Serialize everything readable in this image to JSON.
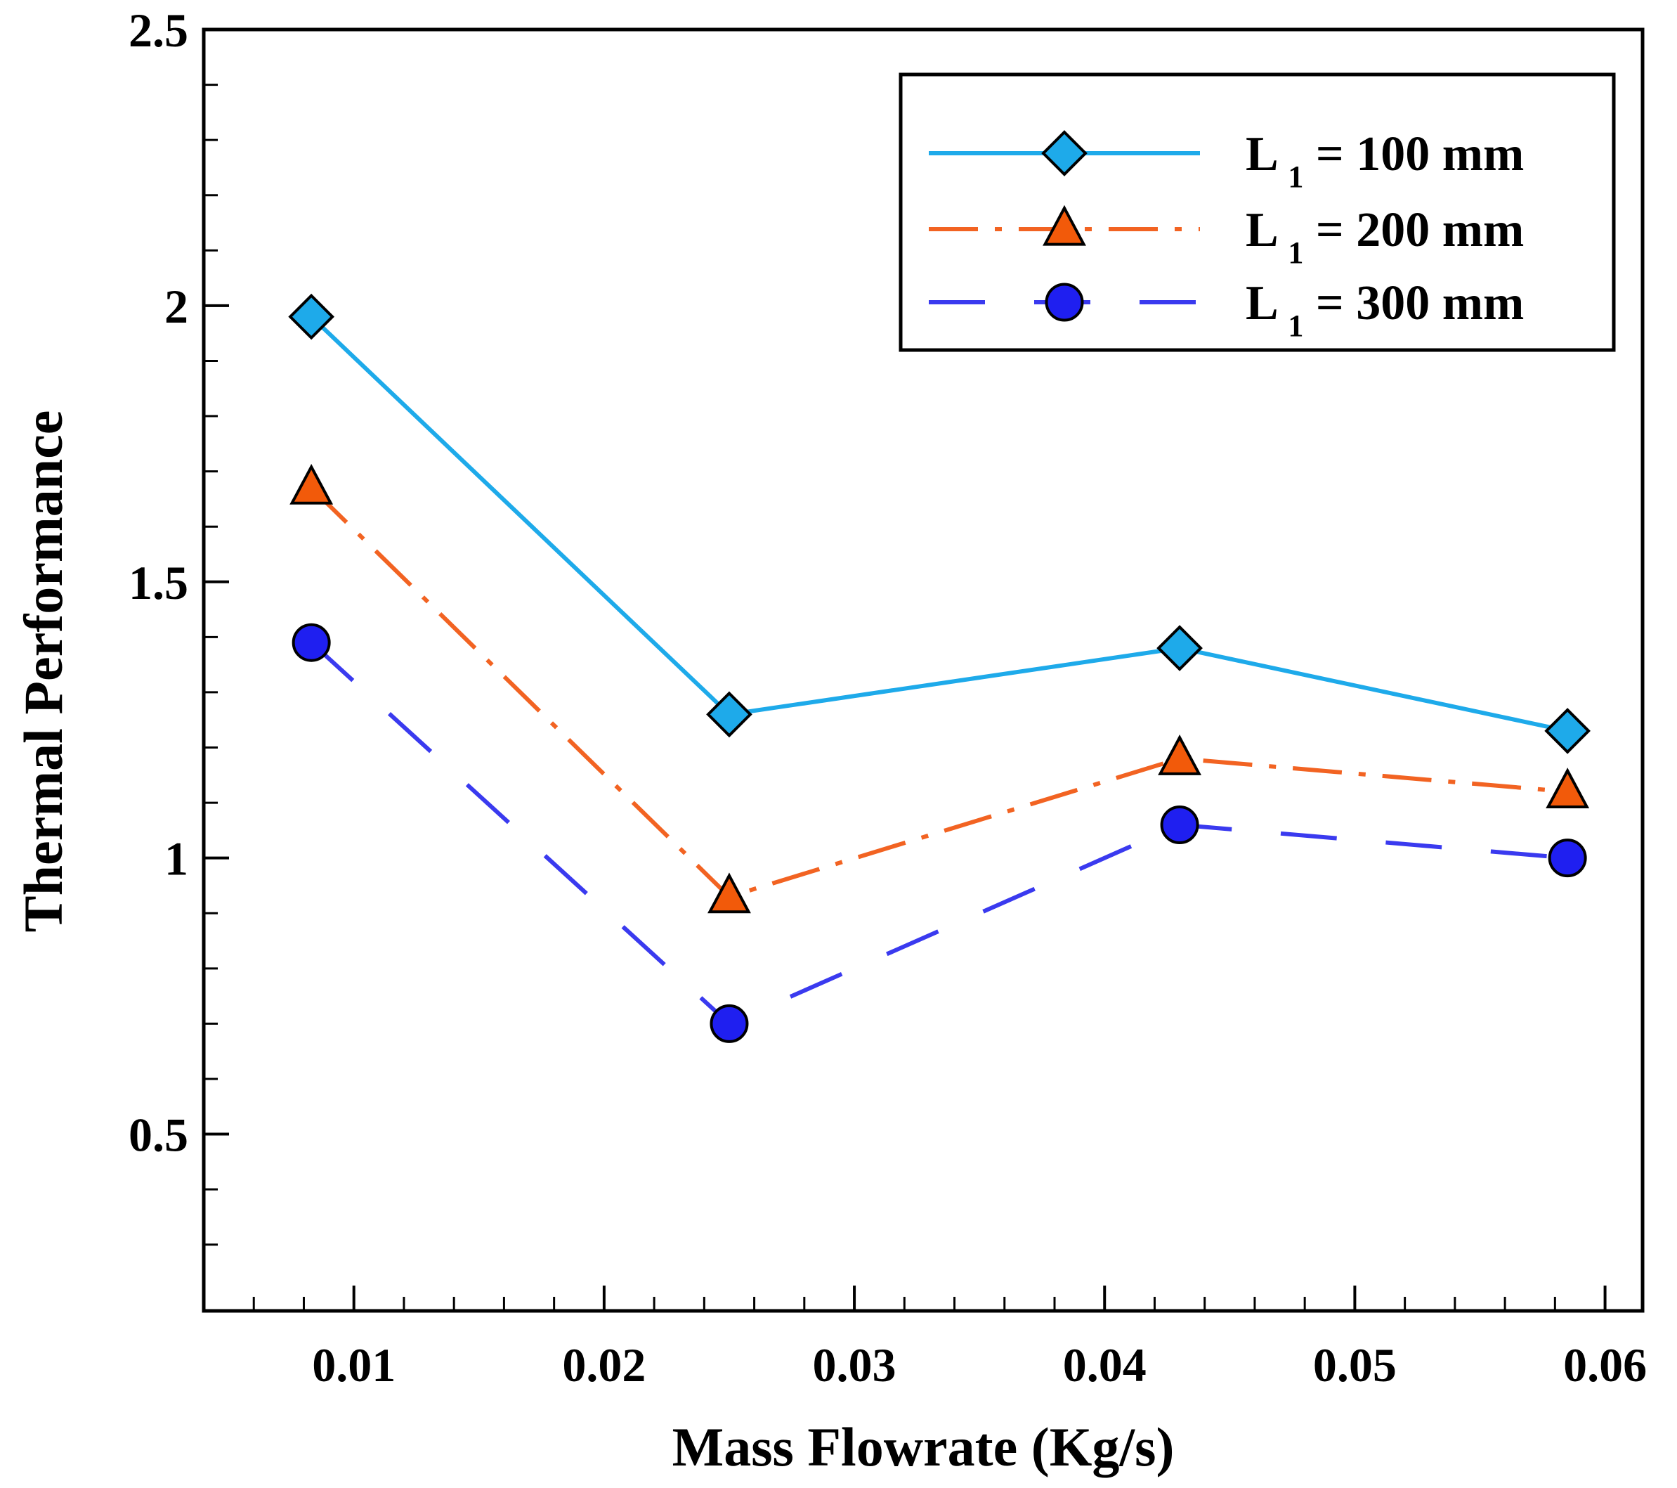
{
  "chart_data": {
    "type": "line",
    "title": "",
    "xlabel": "Mass Flowrate (Kg/s)",
    "ylabel": "Thermal Performance",
    "xlim": [
      0.004,
      0.0615
    ],
    "ylim": [
      0.18,
      2.5
    ],
    "x_ticks": [
      0.01,
      0.02,
      0.03,
      0.04,
      0.05,
      0.06
    ],
    "x_tick_labels": [
      "0.01",
      "0.02",
      "0.03",
      "0.04",
      "0.05",
      "0.06"
    ],
    "y_ticks": [
      0.5,
      1,
      1.5,
      2,
      2.5
    ],
    "y_tick_labels": [
      "0.5",
      "1",
      "1.5",
      "2",
      "2.5"
    ],
    "grid": false,
    "legend_position": "top-right",
    "x": [
      0.0083,
      0.025,
      0.043,
      0.0585
    ],
    "series": [
      {
        "name": "L 1 = 100 mm",
        "legend_prefix": "L ",
        "legend_sub": "1",
        "legend_suffix": " = 100 mm",
        "marker": "diamond",
        "line_style": "solid",
        "color": "#1eaaea",
        "marker_color": "#1eaaea",
        "values": [
          1.98,
          1.26,
          1.38,
          1.23
        ]
      },
      {
        "name": "L 1 = 200 mm",
        "legend_prefix": "L ",
        "legend_sub": "1",
        "legend_suffix": " = 200 mm",
        "marker": "triangle",
        "line_style": "dashdot",
        "color": "#f26322",
        "marker_color": "#f25a0a",
        "values": [
          1.67,
          0.93,
          1.18,
          1.12
        ]
      },
      {
        "name": "L 1 = 300 mm",
        "legend_prefix": "L ",
        "legend_sub": "1",
        "legend_suffix": " = 300 mm",
        "marker": "circle",
        "line_style": "dashed",
        "color": "#3a3aef",
        "marker_color": "#1f1ff0",
        "values": [
          1.39,
          0.7,
          1.06,
          1.0
        ]
      }
    ]
  }
}
